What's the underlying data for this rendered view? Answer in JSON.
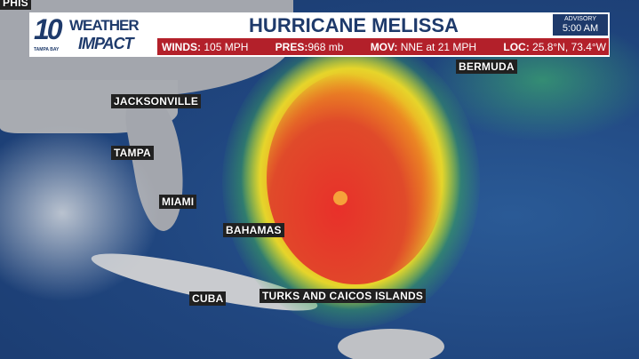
{
  "header": {
    "logo": {
      "number": "10",
      "line1": "WEATHER",
      "line2": "IMPACT",
      "station": "TAMPA BAY"
    },
    "title": "HURRICANE MELISSA",
    "advisory": {
      "label": "ADVISORY",
      "time": "5:00 AM"
    },
    "stats": [
      {
        "label": "WINDS:",
        "value": "105 MPH"
      },
      {
        "label": "PRES:",
        "value": "968 mb"
      },
      {
        "label": "MOV:",
        "value": "NNE at 21 MPH"
      },
      {
        "label": "LOC:",
        "value": "25.8°N, 73.4°W"
      }
    ]
  },
  "map": {
    "labels": {
      "memphis_partial": "PHIS",
      "jacksonville": "JACKSONVILLE",
      "tampa": "TAMPA",
      "miami": "MIAMI",
      "bahamas": "BAHAMAS",
      "cuba": "CUBA",
      "turks": "TURKS AND CAICOS ISLANDS",
      "bermuda": "BERMUDA"
    }
  },
  "colors": {
    "brand": "#1e3a6b",
    "stats_bar": "#b3202a"
  }
}
